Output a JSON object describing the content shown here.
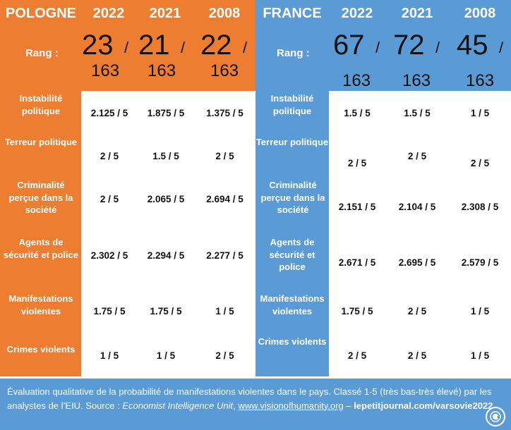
{
  "poland": {
    "country": "POLOGNE",
    "years": [
      "2022",
      "2021",
      "2008"
    ],
    "rank_label": "Rang :",
    "ranks": [
      {
        "rank": "23",
        "sep": "/",
        "total": "163"
      },
      {
        "rank": "21",
        "sep": "/",
        "total": "163"
      },
      {
        "rank": "22",
        "sep": "/",
        "total": "163"
      }
    ]
  },
  "france": {
    "country": "FRANCE",
    "years": [
      "2022",
      "2021",
      "2008"
    ],
    "rank_label": "Rang :",
    "ranks": [
      {
        "rank": "67",
        "sep": "/",
        "total": "163"
      },
      {
        "rank": "72",
        "sep": "/",
        "total": "163"
      },
      {
        "rank": "45",
        "sep": "/",
        "total": "163"
      }
    ]
  },
  "rows": [
    {
      "label": "Instabilité politique",
      "poland": [
        "2.125 / 5",
        "1.875 / 5",
        "1.375 / 5"
      ],
      "france": [
        "1.5 / 5",
        "1.5 / 5",
        "1 / 5"
      ]
    },
    {
      "label": "Terreur politique",
      "poland": [
        "2 / 5",
        "1.5 / 5",
        "2 / 5"
      ],
      "france": [
        "2 / 5",
        "2 / 5",
        "2 / 5"
      ]
    },
    {
      "label": "Criminalité perçue dans la société",
      "poland": [
        "2 / 5",
        "2.065 / 5",
        "2.694 / 5"
      ],
      "france": [
        "2.151 / 5",
        "2.104 / 5",
        "2.308 / 5"
      ]
    },
    {
      "label": "Agents de sécurité et police",
      "poland": [
        "2.302 / 5",
        "2.294 / 5",
        "2.277 / 5"
      ],
      "france": [
        "2.671 / 5",
        "2.695 / 5",
        "2.579 / 5"
      ]
    },
    {
      "label": "Manifestations violentes",
      "poland": [
        "1.75 / 5",
        "1.75 / 5",
        "1 / 5"
      ],
      "france": [
        "1.75 / 5",
        "2 / 5",
        "1 / 5"
      ]
    },
    {
      "label": "Crimes violents",
      "poland": [
        "1 / 5",
        "1 / 5",
        "2 / 5"
      ],
      "france": [
        "2 / 5",
        "2 / 5",
        "1 / 5"
      ]
    }
  ],
  "footer": {
    "text1": "Évaluation qualitative de la probabilité de manifestations violentes dans le pays. Classé 1-5 (très bas-très élevé) par les analystes de l’EIU. Source : ",
    "source": "Economist Intelligence Unit",
    "sep": ", ",
    "link": "www.visionofhumanity.org",
    "dash": " – ",
    "credit": "lepetitjournal.com/varsovie2022"
  },
  "colors": {
    "poland": "#ED7D31",
    "france": "#5B9BD5"
  },
  "icons": {
    "logo": "globe-logo-icon"
  }
}
